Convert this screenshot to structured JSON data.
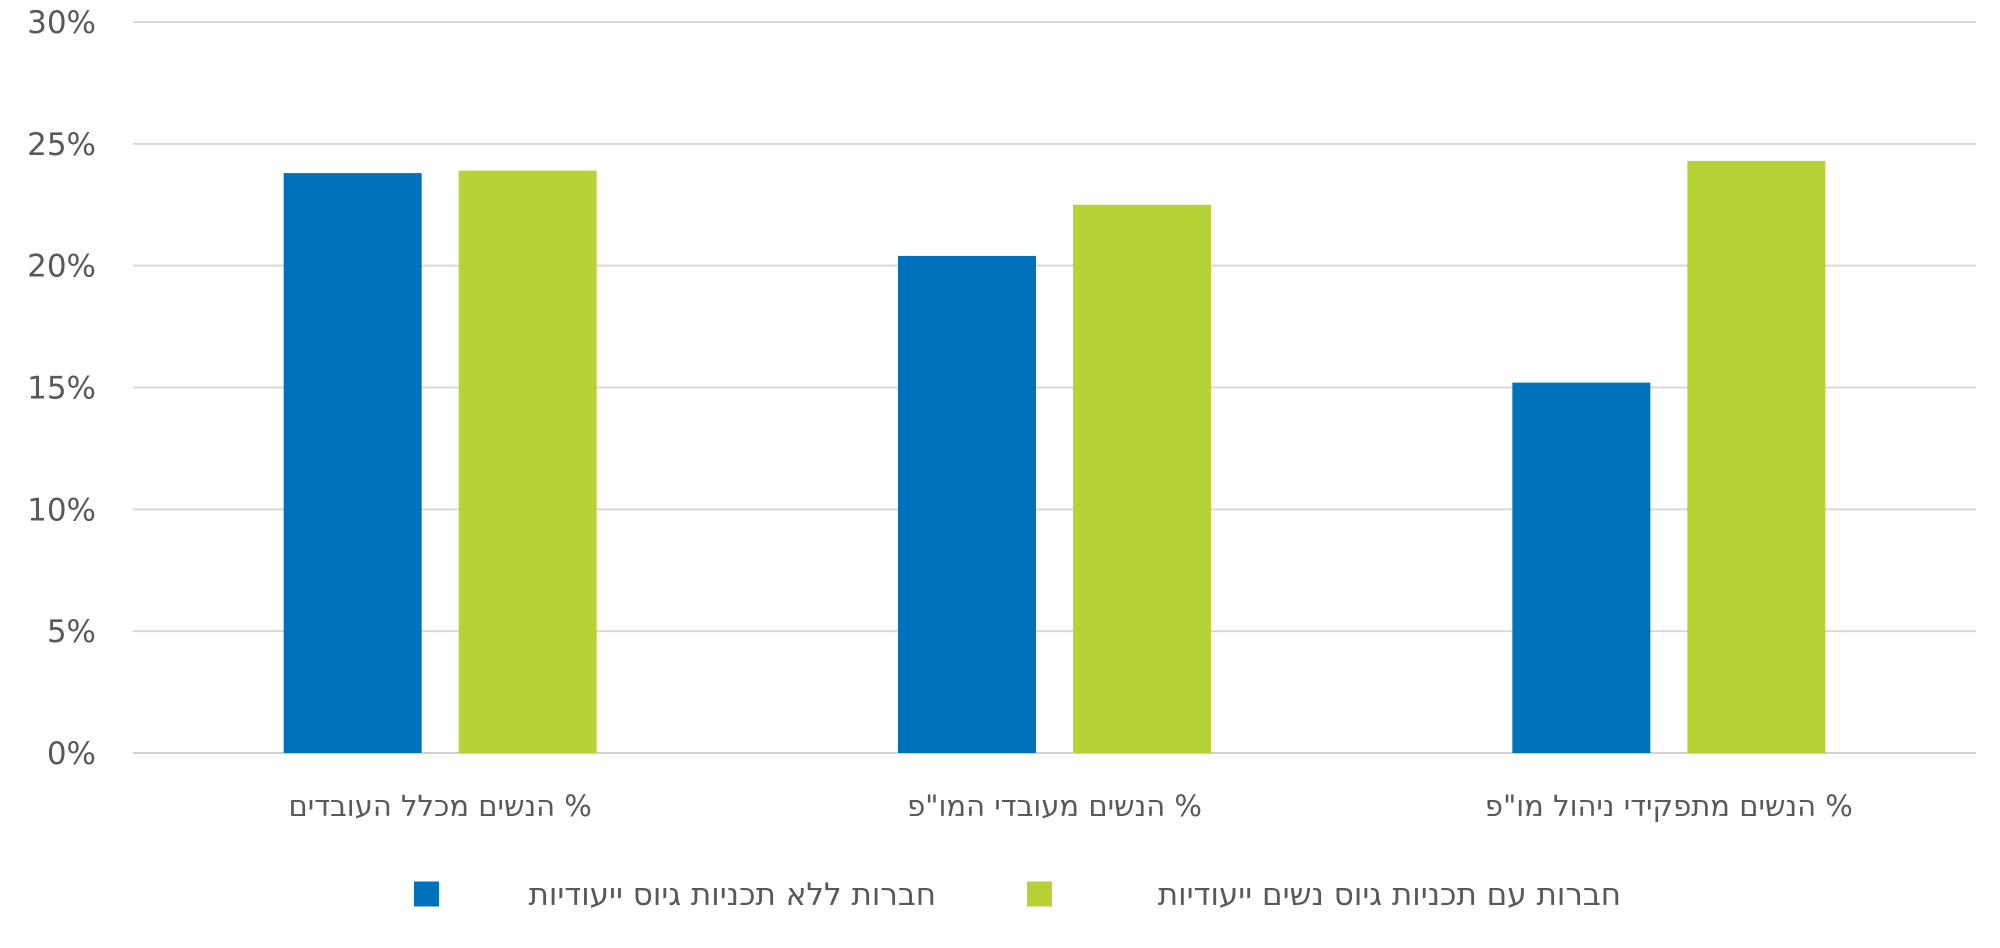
{
  "chart_data": {
    "type": "bar",
    "categories": [
      "% הנשים מכלל העובדים",
      "% הנשים מעובדי המו\"פ",
      "% הנשים מתפקידי ניהול מו\"פ"
    ],
    "series": [
      {
        "name": "חברות ללא תכניות גיוס ייעודיות",
        "color": "#0072bc",
        "values": [
          23.8,
          20.4,
          15.2
        ]
      },
      {
        "name": "חברות עם תכניות גיוס נשים ייעודיות",
        "color": "#b5d334",
        "values": [
          23.9,
          22.5,
          24.3
        ]
      }
    ],
    "ylim": [
      0,
      30
    ],
    "yticks": [
      0,
      5,
      10,
      15,
      20,
      25,
      30
    ],
    "ytick_labels": [
      "0%",
      "5%",
      "10%",
      "15%",
      "20%",
      "25%",
      "30%"
    ],
    "grid": true,
    "legend_position": "bottom",
    "title": "",
    "xlabel": "",
    "ylabel": ""
  }
}
